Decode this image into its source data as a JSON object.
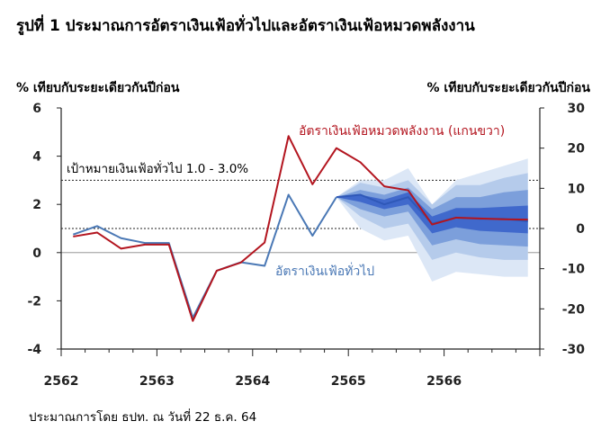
{
  "chart_data": {
    "type": "line",
    "title": "รูปที่ 1 ประมาณการอัตราเงินเฟ้อทั่วไปและอัตราเงินเฟ้อหมวดพลังงาน",
    "ylabel_left": "% เทียบกับระยะเดียวกันปีก่อน",
    "ylabel_right": "% เทียบกับระยะเดียวกันปีก่อน",
    "ylim_left": [
      -4,
      6
    ],
    "yticks_left": [
      -4,
      -2,
      0,
      2,
      4,
      6
    ],
    "ylim_right": [
      -30,
      30
    ],
    "yticks_right": [
      -30,
      -20,
      -10,
      0,
      10,
      20,
      30
    ],
    "x_tick_labels": [
      "2562",
      "2563",
      "2564",
      "2565",
      "2566"
    ],
    "target_band": {
      "label": "เป้าหมายเงินเฟ้อทั่วไป 1.0 - 3.0%",
      "low": 1.0,
      "high": 3.0
    },
    "series": [
      {
        "name": "อัตราเงินเฟ้อทั่วไป",
        "axis": "left",
        "color": "#4a78b5",
        "x": [
          "2562Q1",
          "2562Q2",
          "2562Q3",
          "2562Q4",
          "2563Q1",
          "2563Q2",
          "2563Q3",
          "2563Q4",
          "2564Q1",
          "2564Q2",
          "2564Q3",
          "2564Q4"
        ],
        "values": [
          0.75,
          1.1,
          0.6,
          0.4,
          0.4,
          -2.7,
          -0.75,
          -0.4,
          -0.55,
          2.4,
          0.7,
          2.3
        ]
      },
      {
        "name": "อัตราเงินเฟ้อหมวดพลังงาน (แกนขวา)",
        "axis": "right",
        "color": "#b3151f",
        "x": [
          "2562Q1",
          "2562Q2",
          "2562Q3",
          "2562Q4",
          "2563Q1",
          "2563Q2",
          "2563Q3",
          "2563Q4",
          "2564Q1",
          "2564Q2",
          "2564Q3",
          "2564Q4",
          "2565Q1",
          "2565Q2",
          "2565Q3",
          "2565Q4",
          "2566Q1",
          "2566Q2",
          "2566Q3",
          "2566Q4"
        ],
        "values": [
          -2,
          -1,
          -5,
          -4,
          -4,
          -23,
          -10.5,
          -8.5,
          -3.5,
          23,
          11,
          20,
          16.5,
          10.5,
          9.5,
          1,
          2.7,
          2.5,
          2.3,
          2.2
        ]
      }
    ],
    "fan_chart": {
      "axis": "left",
      "x": [
        "2564Q4",
        "2565Q1",
        "2565Q2",
        "2565Q3",
        "2565Q4",
        "2566Q1",
        "2566Q2",
        "2566Q3",
        "2566Q4"
      ],
      "median": [
        2.3,
        2.4,
        2.0,
        2.3,
        1.2,
        1.45,
        1.4,
        1.4,
        1.3
      ],
      "bands": [
        {
          "level": "outer",
          "color": "#dce7f6",
          "low": [
            2.3,
            1.0,
            0.5,
            0.7,
            -1.2,
            -0.8,
            -0.9,
            -1.0,
            -1.0
          ],
          "high": [
            2.3,
            3.0,
            3.0,
            3.5,
            2.0,
            3.0,
            3.3,
            3.6,
            3.9
          ]
        },
        {
          "level": "second",
          "color": "#b5cbeb",
          "low": [
            2.3,
            1.5,
            1.0,
            1.2,
            -0.3,
            0.0,
            -0.2,
            -0.3,
            -0.3
          ],
          "high": [
            2.3,
            2.9,
            2.7,
            3.0,
            2.0,
            2.8,
            2.8,
            3.1,
            3.3
          ]
        },
        {
          "level": "third",
          "color": "#7c9fdb",
          "low": [
            2.3,
            1.8,
            1.5,
            1.7,
            0.3,
            0.55,
            0.35,
            0.3,
            0.25
          ],
          "high": [
            2.3,
            2.6,
            2.4,
            2.7,
            1.8,
            2.3,
            2.3,
            2.5,
            2.6
          ]
        },
        {
          "level": "inner",
          "color": "#4069cc",
          "low": [
            2.3,
            2.1,
            1.8,
            2.0,
            0.8,
            1.05,
            0.9,
            0.85,
            0.8
          ],
          "high": [
            2.3,
            2.4,
            2.2,
            2.5,
            1.5,
            1.85,
            1.85,
            1.9,
            1.95
          ]
        }
      ]
    },
    "grid": false,
    "footnote": "ประมาณการโดย ธปท. ณ วันที่ 22 ธ.ค. 64"
  }
}
